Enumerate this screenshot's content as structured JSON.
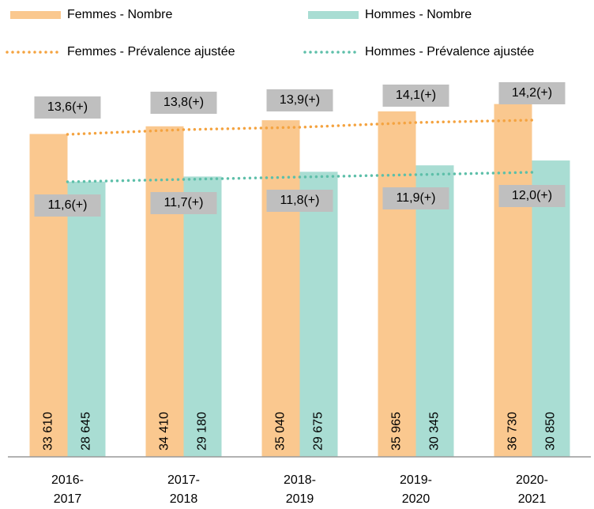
{
  "chart_data": {
    "type": "bar",
    "categories": [
      "2016-2017",
      "2017-2018",
      "2018-2019",
      "2019-2020",
      "2020-2021"
    ],
    "series": [
      {
        "name": "Femmes - Nombre",
        "type": "bar",
        "color": "#fac88f",
        "values": [
          33610,
          34410,
          35040,
          35965,
          36730
        ],
        "value_labels": [
          "33 610",
          "34 410",
          "35 040",
          "35 965",
          "36 730"
        ]
      },
      {
        "name": "Hommes - Nombre",
        "type": "bar",
        "color": "#a9ddd3",
        "values": [
          28645,
          29180,
          29675,
          30345,
          30850
        ],
        "value_labels": [
          "28 645",
          "29 180",
          "29 675",
          "30 345",
          "30 850"
        ]
      },
      {
        "name": "Femmes - Prévalence ajustée",
        "type": "line",
        "axis": "y2",
        "color": "#f4a340",
        "values": [
          13.6,
          13.8,
          13.9,
          14.1,
          14.2
        ],
        "value_labels": [
          "13,6(+)",
          "13,8(+)",
          "13,9(+)",
          "14,1(+)",
          "14,2(+)"
        ]
      },
      {
        "name": "Hommes - Prévalence ajustée",
        "type": "line",
        "axis": "y2",
        "color": "#5dbfa9",
        "values": [
          11.6,
          11.7,
          11.8,
          11.9,
          12.0
        ],
        "value_labels": [
          "11,6(+)",
          "11,7(+)",
          "11,8(+)",
          "11,9(+)",
          "12,0(+)"
        ]
      }
    ],
    "ylim": [
      0,
      46900
    ],
    "y2lim": [
      0,
      19
    ]
  }
}
